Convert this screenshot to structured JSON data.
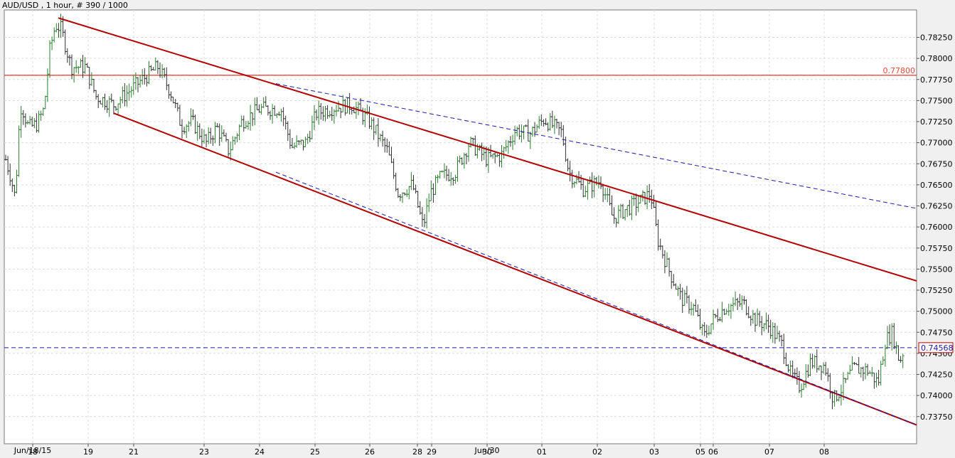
{
  "header": {
    "title": "AUD/USD , 1 hour, # 390 / 1000"
  },
  "colors": {
    "up_candle": "#2e7d32",
    "down_candle": "#333333",
    "channel_line": "#b30000",
    "dashed_trend": "#1a1aa8",
    "level_line": "#e8473a",
    "grid": "#dcdcdc",
    "price_box": "#cc0000"
  },
  "chart_data": {
    "type": "candlestick",
    "title": "AUD/USD , 1 hour, # 390 / 1000",
    "ylim": [
      0.7365,
      0.786
    ],
    "y_ticks": [
      "0.78250",
      "0.78000",
      "0.77750",
      "0.77500",
      "0.77250",
      "0.77000",
      "0.76750",
      "0.76500",
      "0.76250",
      "0.76000",
      "0.75750",
      "0.75500",
      "0.75250",
      "0.75000",
      "0.74750",
      "0.74500",
      "0.74250",
      "0.74000",
      "0.73750"
    ],
    "x_ticks": [
      "18",
      "19",
      "21",
      "23",
      "24",
      "25",
      "26",
      "28",
      "29",
      "30",
      "01",
      "02",
      "03",
      "05",
      "06",
      "07",
      "08"
    ],
    "x_sublabels": [
      "Jun/18/15",
      "Jun/30"
    ],
    "grid": true,
    "horizontal_level": {
      "value": 0.778,
      "label": "0.77800"
    },
    "current_price": {
      "value": 0.74568,
      "label": "0.74568"
    },
    "channel_upper": {
      "from": [
        "Jun/18",
        0.7848
      ],
      "to": [
        "Jul/08",
        0.7536
      ]
    },
    "channel_lower": {
      "from": [
        "Jun/19",
        0.7735
      ],
      "to": [
        "Jul/08",
        0.7365
      ]
    },
    "dashed_upper": {
      "from": [
        "Jun/24",
        0.777
      ],
      "to": [
        "Jul/08",
        0.7622
      ]
    },
    "dashed_lower": {
      "from": [
        "Jun/24",
        0.7665
      ],
      "to": [
        "Jul/08",
        0.7365
      ]
    },
    "key_prices": [
      {
        "date": "Jun/18",
        "price": 0.763,
        "note": "low"
      },
      {
        "date": "Jun/18",
        "price": 0.7848,
        "note": "high"
      },
      {
        "date": "Jun/22",
        "price": 0.7795
      },
      {
        "date": "Jun/23",
        "price": 0.7678
      },
      {
        "date": "Jun/24",
        "price": 0.777
      },
      {
        "date": "Jun/26",
        "price": 0.7752
      },
      {
        "date": "Jun/28",
        "price": 0.758,
        "note": "low"
      },
      {
        "date": "Jun/30",
        "price": 0.7712
      },
      {
        "date": "Jul/01",
        "price": 0.7737
      },
      {
        "date": "Jul/02",
        "price": 0.7632
      },
      {
        "date": "Jul/02",
        "price": 0.7587
      },
      {
        "date": "Jul/03",
        "price": 0.7648
      },
      {
        "date": "Jul/03",
        "price": 0.752
      },
      {
        "date": "Jul/05",
        "price": 0.7452
      },
      {
        "date": "Jul/06",
        "price": 0.7532
      },
      {
        "date": "Jul/07",
        "price": 0.74
      },
      {
        "date": "Jul/08",
        "price": 0.7372,
        "note": "low"
      },
      {
        "date": "Jul/08",
        "price": 0.7492
      },
      {
        "date": "Jul/08",
        "price": 0.74568,
        "note": "last"
      }
    ]
  }
}
